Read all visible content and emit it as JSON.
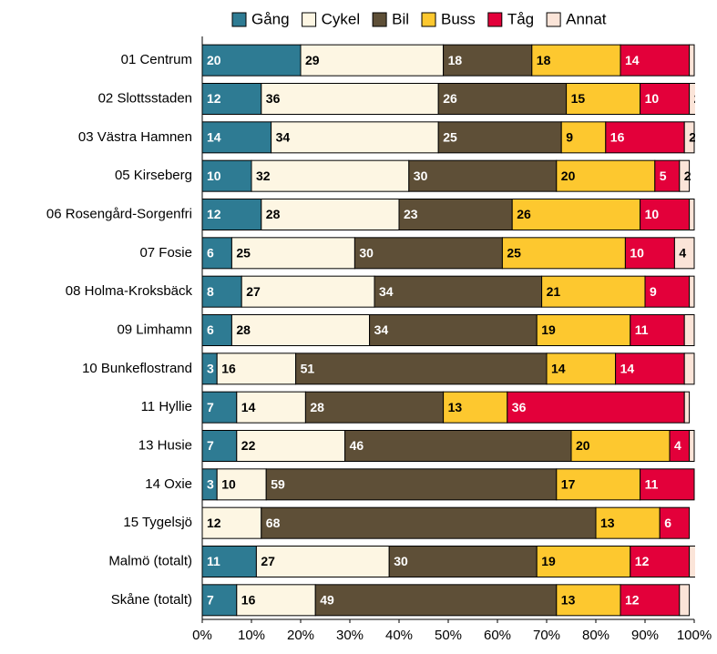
{
  "chart_data": {
    "type": "stacked_barh",
    "categories": [
      "01 Centrum",
      "02 Slottsstaden",
      "03 Västra Hamnen",
      "05 Kirseberg",
      "06 Rosengård-Sorgenfri",
      "07 Fosie",
      "08 Holma-Kroksbäck",
      "09 Limhamn",
      "10 Bunkeflostrand",
      "11 Hyllie",
      "13 Husie",
      "14 Oxie",
      "15 Tygelsjö",
      "Malmö (totalt)",
      "Skåne (totalt)"
    ],
    "series": [
      {
        "name": "Gång",
        "color": "#2e7b93",
        "label_color": "#ffffff",
        "values": [
          20,
          12,
          14,
          10,
          12,
          6,
          8,
          6,
          3,
          7,
          7,
          3,
          0,
          11,
          7
        ],
        "value_labels": [
          "20",
          "12",
          "14",
          "10",
          "12",
          "6",
          "8",
          "6",
          "3",
          "7",
          "7",
          "3",
          null,
          "11",
          "7"
        ]
      },
      {
        "name": "Cykel",
        "color": "#fdf6e3",
        "label_color": "#000000",
        "values": [
          29,
          36,
          34,
          32,
          28,
          25,
          27,
          28,
          16,
          14,
          22,
          10,
          12,
          27,
          16
        ]
      },
      {
        "name": "Bil",
        "color": "#5e4f37",
        "label_color": "#ffffff",
        "values": [
          18,
          26,
          25,
          30,
          23,
          30,
          34,
          34,
          51,
          28,
          46,
          59,
          68,
          30,
          49
        ]
      },
      {
        "name": "Buss",
        "color": "#fdc82f",
        "label_color": "#000000",
        "values": [
          18,
          15,
          9,
          20,
          26,
          25,
          21,
          19,
          14,
          13,
          20,
          17,
          13,
          19,
          13
        ]
      },
      {
        "name": "Tåg",
        "color": "#e3003a",
        "label_color": "#ffffff",
        "values": [
          14,
          10,
          16,
          5,
          10,
          10,
          9,
          11,
          14,
          36,
          4,
          11,
          6,
          12,
          12
        ]
      },
      {
        "name": "Annat",
        "color": "#fbe4d8",
        "label_color": "#000000",
        "values": [
          1,
          2,
          2,
          2,
          1,
          4,
          1,
          2,
          2,
          1,
          1,
          0,
          0,
          2,
          2
        ],
        "value_labels": [
          null,
          "2",
          "2",
          "2",
          null,
          "4",
          null,
          null,
          null,
          null,
          null,
          null,
          null,
          null,
          null
        ]
      }
    ],
    "xlim": [
      0,
      100
    ],
    "xticks": [
      {
        "value": 0,
        "label": "0%"
      },
      {
        "value": 10,
        "label": "10%"
      },
      {
        "value": 20,
        "label": "20%"
      },
      {
        "value": 30,
        "label": "30%"
      },
      {
        "value": 40,
        "label": "40%"
      },
      {
        "value": 50,
        "label": "50%"
      },
      {
        "value": 60,
        "label": "60%"
      },
      {
        "value": 70,
        "label": "70%"
      },
      {
        "value": 80,
        "label": "80%"
      },
      {
        "value": 90,
        "label": "90%"
      },
      {
        "value": 100,
        "label": "100%"
      }
    ],
    "legend": "top"
  }
}
